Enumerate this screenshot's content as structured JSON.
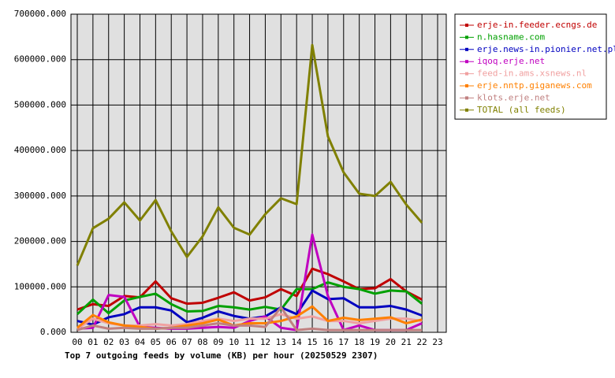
{
  "chart_data": {
    "type": "line",
    "title": "Top 7 outgoing feeds by volume (KB) per hour (20250529 2307)",
    "categories": [
      "00",
      "01",
      "02",
      "03",
      "04",
      "05",
      "06",
      "07",
      "08",
      "09",
      "10",
      "11",
      "12",
      "13",
      "14",
      "15",
      "16",
      "17",
      "18",
      "19",
      "20",
      "21",
      "22",
      "23"
    ],
    "ylim": [
      0,
      700000
    ],
    "yticks": [
      {
        "value": 0,
        "label": "0.000"
      },
      {
        "value": 100000,
        "label": "100000.000"
      },
      {
        "value": 200000,
        "label": "200000.000"
      },
      {
        "value": 300000,
        "label": "300000.000"
      },
      {
        "value": 400000,
        "label": "400000.000"
      },
      {
        "value": 500000,
        "label": "500000.000"
      },
      {
        "value": 600000,
        "label": "600000.000"
      },
      {
        "value": 700000,
        "label": "700000.000"
      }
    ],
    "grid": true,
    "legend": "right",
    "background": "#e0e0e0",
    "series": [
      {
        "name": "erje-in.feeder.ecngs.de",
        "color": "#c00000",
        "values": [
          50000,
          62000,
          58000,
          80000,
          77000,
          112000,
          75000,
          63000,
          65000,
          76000,
          88000,
          70000,
          77000,
          95000,
          80000,
          140000,
          128000,
          112000,
          95000,
          97000,
          117000,
          90000,
          72000,
          null
        ]
      },
      {
        "name": "n.hasname.com",
        "color": "#00a000",
        "values": [
          40000,
          72000,
          42000,
          70000,
          78000,
          85000,
          62000,
          46000,
          47000,
          58000,
          55000,
          50000,
          56000,
          50000,
          95000,
          95000,
          110000,
          100000,
          95000,
          85000,
          92000,
          90000,
          63000,
          null
        ]
      },
      {
        "name": "erje.news-in.pionier.net.pl",
        "color": "#0000c0",
        "values": [
          25000,
          17000,
          33000,
          40000,
          55000,
          55000,
          48000,
          22000,
          32000,
          46000,
          36000,
          30000,
          35000,
          55000,
          40000,
          92000,
          73000,
          75000,
          55000,
          55000,
          58000,
          50000,
          37000,
          null
        ]
      },
      {
        "name": "iqoq.erje.net",
        "color": "#c000c0",
        "values": [
          8000,
          10000,
          82000,
          78000,
          12000,
          10000,
          8000,
          8000,
          10000,
          12000,
          10000,
          25000,
          35000,
          10000,
          5000,
          215000,
          80000,
          5000,
          15000,
          5000,
          5000,
          5000,
          20000,
          null
        ]
      },
      {
        "name": "feed-in.ams.xsnews.nl",
        "color": "#f0a0a0",
        "values": [
          8000,
          30000,
          20000,
          15000,
          15000,
          18000,
          15000,
          18000,
          25000,
          30000,
          25000,
          30000,
          30000,
          40000,
          30000,
          35000,
          25000,
          25000,
          20000,
          25000,
          30000,
          30000,
          25000,
          null
        ]
      },
      {
        "name": "erje.nntp.giganews.com",
        "color": "#ff8000",
        "values": [
          10000,
          38000,
          22000,
          15000,
          12000,
          8000,
          10000,
          15000,
          20000,
          28000,
          15000,
          20000,
          20000,
          25000,
          35000,
          57000,
          25000,
          32000,
          27000,
          30000,
          33000,
          20000,
          28000,
          null
        ]
      },
      {
        "name": "klots.erje.net",
        "color": "#c08080",
        "values": [
          5000,
          15000,
          8000,
          10000,
          8000,
          8000,
          10000,
          10000,
          15000,
          20000,
          15000,
          15000,
          12000,
          55000,
          5000,
          8000,
          5000,
          5000,
          5000,
          5000,
          5000,
          5000,
          5000,
          null
        ]
      },
      {
        "name": "TOTAL (all feeds)",
        "color": "#808000",
        "values": [
          147000,
          229000,
          250000,
          286000,
          246000,
          291000,
          222000,
          166000,
          211000,
          275000,
          230000,
          215000,
          260000,
          295000,
          282000,
          632000,
          431000,
          352000,
          305000,
          300000,
          331000,
          281000,
          241000,
          null
        ]
      }
    ]
  }
}
